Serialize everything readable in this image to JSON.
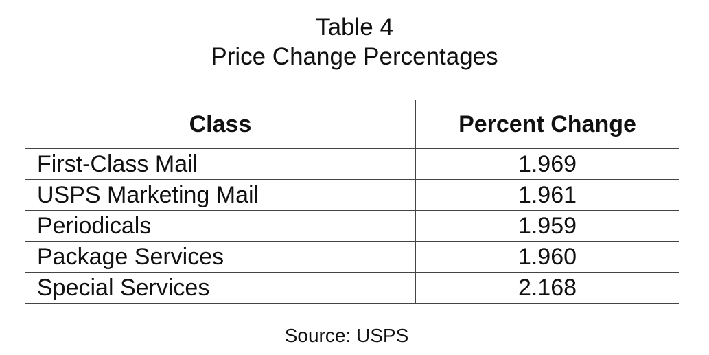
{
  "caption": {
    "number": "Table 4",
    "title": "Price Change Percentages"
  },
  "table": {
    "headers": [
      "Class",
      "Percent Change"
    ],
    "rows": [
      {
        "class": "First-Class Mail",
        "percent_change": "1.969"
      },
      {
        "class": "USPS Marketing Mail",
        "percent_change": "1.961"
      },
      {
        "class": "Periodicals",
        "percent_change": "1.959"
      },
      {
        "class": "Package Services",
        "percent_change": "1.960"
      },
      {
        "class": "Special Services",
        "percent_change": "2.168"
      }
    ]
  },
  "source": "Source: USPS"
}
